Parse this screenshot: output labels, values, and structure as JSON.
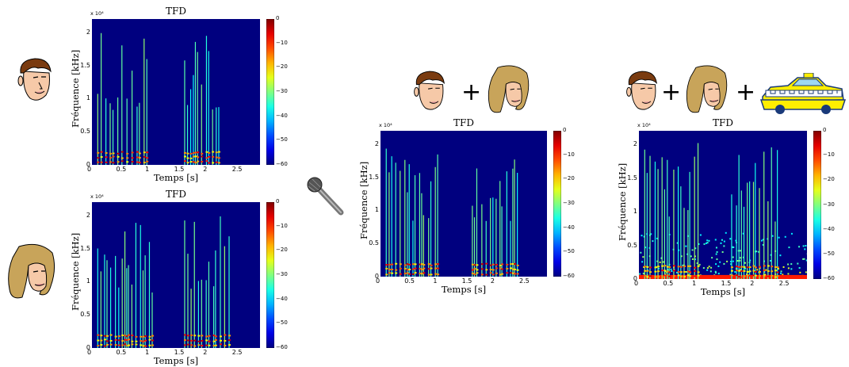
{
  "colors": {
    "background": "#00007f",
    "colormap": "jet"
  },
  "operator": "+",
  "icons": [
    "man-face-icon",
    "woman-face-icon",
    "microphone-icon",
    "taxi-car-icon"
  ],
  "chart_data": [
    {
      "id": "man",
      "type": "heatmap",
      "title": "TFD",
      "xlabel": "Temps [s]",
      "ylabel": "Fréquence [kHz]",
      "xticks": [
        "0",
        "0.5",
        "1",
        "1.5",
        "2",
        "2.5"
      ],
      "yticks": [
        "0",
        "0.5",
        "1",
        "1.5",
        "2"
      ],
      "yexponent": "x 10⁴",
      "colorbar_ticks": [
        "0",
        "−10",
        "−20",
        "−30",
        "−40",
        "−50",
        "−60"
      ],
      "xlim": [
        0,
        2.9
      ],
      "ylim": [
        0,
        2.2
      ],
      "clim": [
        -60,
        0
      ],
      "x_multiplier": 0,
      "y_multiplier": 10000
    },
    {
      "id": "woman",
      "type": "heatmap",
      "title": "TFD",
      "xlabel": "Temps [s]",
      "ylabel": "Fréquence [kHz]",
      "xticks": [
        "0",
        "0.5",
        "1",
        "1.5",
        "2",
        "2.5"
      ],
      "yticks": [
        "0",
        "0.5",
        "1",
        "1.5",
        "2"
      ],
      "yexponent": "x 10⁴",
      "colorbar_ticks": [
        "0",
        "−10",
        "−20",
        "−30",
        "−40",
        "−50",
        "−60"
      ],
      "xlim": [
        0,
        2.9
      ],
      "ylim": [
        0,
        2.2
      ],
      "clim": [
        -60,
        0
      ]
    },
    {
      "id": "mix",
      "type": "heatmap",
      "title": "TFD",
      "xlabel": "Temps [s]",
      "ylabel": "Fréquence [kHz]",
      "xticks": [
        "0",
        "0.5",
        "1",
        "1.5",
        "2",
        "2.5"
      ],
      "yticks": [
        "0",
        "0.5",
        "1",
        "1.5",
        "2"
      ],
      "yexponent": "x 10⁴",
      "colorbar_ticks": [
        "0",
        "−10",
        "−20",
        "−30",
        "−40",
        "−50",
        "−60"
      ],
      "xlim": [
        0,
        2.9
      ],
      "ylim": [
        0,
        2.2
      ],
      "clim": [
        -60,
        0
      ]
    },
    {
      "id": "noisy",
      "type": "heatmap",
      "title": "TFD",
      "xlabel": "Temps [s]",
      "ylabel": "Fréquence [kHz]",
      "xticks": [
        "0",
        "0.5",
        "1",
        "1.5",
        "2",
        "2.5"
      ],
      "yticks": [
        "0",
        "0.5",
        "1",
        "1.5",
        "2"
      ],
      "yexponent": "x 10⁴",
      "colorbar_ticks": [
        "0",
        "−10",
        "−20",
        "−30",
        "−40",
        "−50",
        "−60"
      ],
      "xlim": [
        0,
        2.9
      ],
      "ylim": [
        0,
        2.2
      ],
      "clim": [
        -60,
        0
      ]
    }
  ]
}
